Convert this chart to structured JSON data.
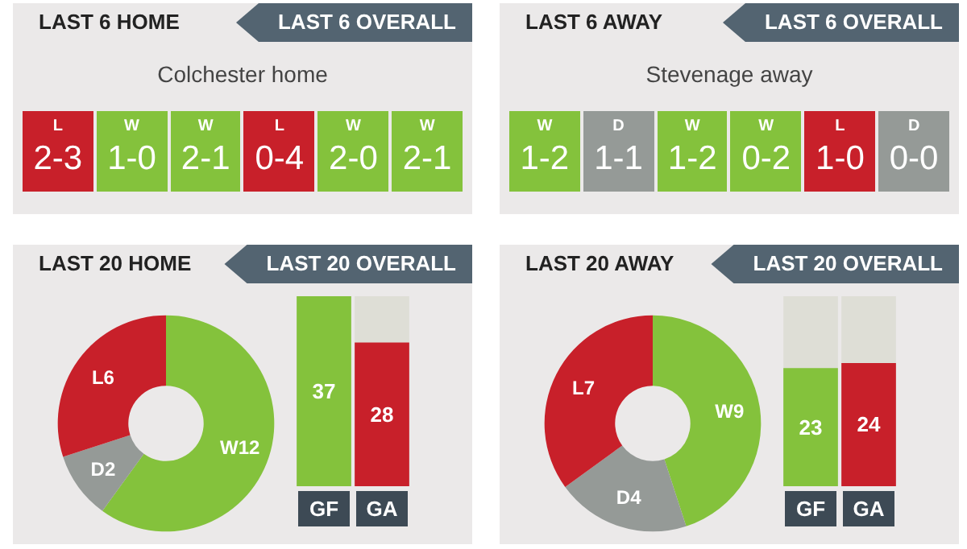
{
  "chart_data": [
    {
      "type": "other",
      "title": "LAST 6 HOME",
      "annotations": [
        "LAST 6 OVERALL"
      ],
      "subtitle": "Colchester home",
      "categories": [
        "L",
        "W",
        "W",
        "L",
        "W",
        "W"
      ],
      "value_labels": [
        "2-3",
        "1-0",
        "2-1",
        "0-4",
        "2-0",
        "2-1"
      ],
      "colors": [
        "#c8202a",
        "#84c23c",
        "#84c23c",
        "#c8202a",
        "#84c23c",
        "#84c23c"
      ]
    },
    {
      "type": "other",
      "title": "LAST 6 AWAY",
      "annotations": [
        "LAST 6 OVERALL"
      ],
      "subtitle": "Stevenage away",
      "categories": [
        "W",
        "D",
        "W",
        "W",
        "L",
        "D"
      ],
      "value_labels": [
        "1-2",
        "1-1",
        "1-2",
        "0-2",
        "1-0",
        "0-0"
      ],
      "colors": [
        "#84c23c",
        "#959a97",
        "#84c23c",
        "#84c23c",
        "#c8202a",
        "#959a97"
      ]
    },
    {
      "type": "donut",
      "title": "LAST 20 HOME",
      "annotations": [
        "LAST 20 OVERALL"
      ],
      "categories": [
        null,
        null,
        null
      ],
      "values": [
        12,
        2,
        6
      ],
      "value_labels": [
        "W12",
        "D2",
        "L6"
      ],
      "colors": [
        "#84c23c",
        "#959a97",
        "#c8202a"
      ]
    },
    {
      "type": "bar",
      "categories": [
        "GF",
        "GA"
      ],
      "values": [
        37,
        28
      ],
      "colors": [
        "#84c23c",
        "#c8202a"
      ],
      "ylim": [
        0,
        37
      ],
      "tick_labels": "x",
      "data_labels": true
    },
    {
      "type": "donut",
      "title": "LAST 20 AWAY",
      "annotations": [
        "LAST 20 OVERALL"
      ],
      "categories": [
        null,
        null,
        null
      ],
      "values": [
        9,
        4,
        7
      ],
      "value_labels": [
        "W9",
        "D4",
        "L7"
      ],
      "colors": [
        "#84c23c",
        "#959a97",
        "#c8202a"
      ]
    },
    {
      "type": "bar",
      "categories": [
        "GF",
        "GA"
      ],
      "values": [
        23,
        24
      ],
      "colors": [
        "#84c23c",
        "#c8202a"
      ],
      "ylim": [
        0,
        37
      ],
      "tick_labels": "x",
      "data_labels": true
    }
  ]
}
